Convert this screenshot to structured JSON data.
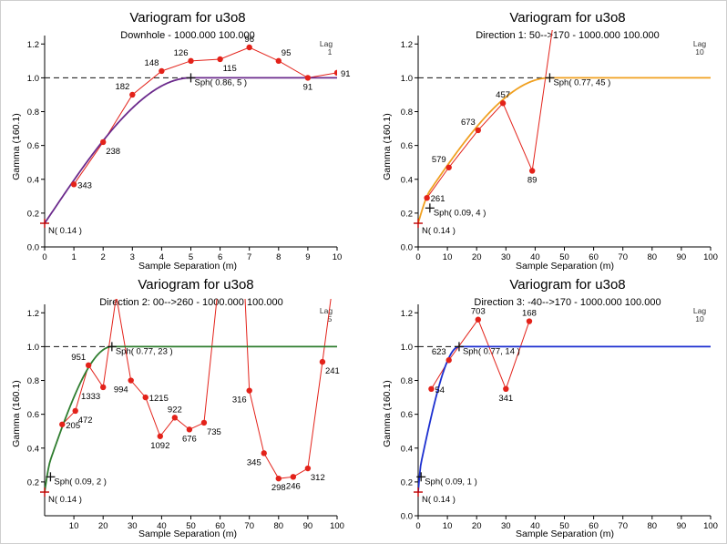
{
  "panels": [
    {
      "title": "Variogram for u3o8",
      "subtitle": "Downhole - 1000.000 100.000",
      "xlabel": "Sample Separation (m)",
      "ylabel": "Gamma (160.1)",
      "lag_title": "Lag",
      "lag_value": "1",
      "model_color": "#6b2a8c",
      "chart_data": {
        "type": "line",
        "xlim": [
          0,
          10
        ],
        "ylim": [
          0,
          1.25
        ],
        "xticks": [
          0,
          1,
          2,
          3,
          4,
          5,
          6,
          7,
          8,
          9,
          10
        ],
        "yticks": [
          0.0,
          0.2,
          0.4,
          0.6,
          0.8,
          1.0,
          1.2
        ],
        "sill": 1.0,
        "experimental": {
          "x": [
            1,
            2,
            3,
            4,
            5,
            6,
            7,
            8,
            9,
            10
          ],
          "y": [
            0.37,
            0.62,
            0.9,
            1.04,
            1.1,
            1.11,
            1.18,
            1.1,
            1.0,
            1.03
          ],
          "labels": [
            "343",
            "238",
            "182",
            "148",
            "126",
            "115",
            "96",
            "95",
            "91",
            "91"
          ]
        },
        "label_placement": [
          "right",
          "below-right",
          "above-left",
          "above-left",
          "above-left",
          "below-right",
          "above",
          "above-right",
          "below",
          "right"
        ],
        "model": {
          "nugget": 0.14,
          "sill": 1.0,
          "range": 5
        },
        "nugget_label": "N( 0.14 )",
        "structures": [
          {
            "label": "Sph( 0.86, 5 )",
            "x": 5,
            "y": 1.0
          }
        ]
      }
    },
    {
      "title": "Variogram for u3o8",
      "subtitle": "Direction 1: 50-->170 - 1000.000 100.000",
      "xlabel": "Sample Separation (m)",
      "ylabel": "Gamma (160.1)",
      "lag_title": "Lag",
      "lag_value": "10",
      "model_color": "#f0a020",
      "chart_data": {
        "type": "line",
        "xlim": [
          0,
          100
        ],
        "ylim": [
          0,
          1.25
        ],
        "xticks": [
          0,
          10,
          20,
          30,
          40,
          50,
          60,
          70,
          80,
          90,
          100
        ],
        "yticks": [
          0.0,
          0.2,
          0.4,
          0.6,
          0.8,
          1.0,
          1.2
        ],
        "sill": 1.0,
        "experimental": {
          "x": [
            3,
            10.5,
            20.5,
            29,
            39,
            46
          ],
          "y": [
            0.29,
            0.47,
            0.69,
            0.85,
            0.45,
            1.3
          ],
          "labels": [
            "261",
            "579",
            "673",
            "457",
            "89",
            ""
          ]
        },
        "label_placement": [
          "right",
          "above-left",
          "above-left",
          "above",
          "below",
          "none"
        ],
        "model": {
          "nugget": 0.14,
          "structures": [
            {
              "sill": 0.09,
              "range": 4
            },
            {
              "sill": 0.77,
              "range": 45
            }
          ]
        },
        "nugget_label": "N( 0.14 )",
        "structures": [
          {
            "label": "Sph( 0.09, 4 )",
            "x": 4,
            "y": 0.23
          },
          {
            "label": "Sph( 0.77, 45 )",
            "x": 45,
            "y": 1.0
          }
        ]
      }
    },
    {
      "title": "Variogram for u3o8",
      "subtitle": "Direction 2: 00-->260 - 1000.000 100.000",
      "xlabel": "Sample Separation (m)",
      "ylabel": "Gamma (160.1)",
      "lag_title": "Lag",
      "lag_value": "5",
      "model_color": "#2f7d2f",
      "chart_data": {
        "type": "line",
        "xlim": [
          0,
          100
        ],
        "ylim": [
          0,
          1.25
        ],
        "xticks": [
          10,
          20,
          30,
          40,
          50,
          60,
          70,
          80,
          90,
          100
        ],
        "yticks": [
          0.2,
          0.4,
          0.6,
          0.8,
          1.0,
          1.2
        ],
        "sill": 1.0,
        "experimental": {
          "x": [
            6,
            10.5,
            15,
            20,
            24.5,
            29.5,
            34.5,
            39.5,
            44.5,
            49.5,
            54.5,
            59,
            68.5,
            70,
            75,
            80,
            85,
            90,
            95,
            98
          ],
          "y": [
            0.54,
            0.62,
            0.89,
            0.76,
            1.3,
            0.8,
            0.7,
            0.47,
            0.58,
            0.51,
            0.55,
            1.3,
            1.3,
            0.74,
            0.37,
            0.22,
            0.23,
            0.28,
            0.91,
            1.3
          ],
          "labels": [
            "205",
            "472",
            "951",
            "1333",
            "",
            "994",
            "1215",
            "1092",
            "922",
            "676",
            "735",
            "",
            "",
            "316",
            "345",
            "298",
            "246",
            "312",
            "241",
            ""
          ]
        },
        "label_placement": [
          "right",
          "below-right",
          "above-left",
          "below-left",
          "none",
          "below-left",
          "right",
          "below",
          "above",
          "below",
          "below-right",
          "none",
          "none",
          "below-left",
          "below-left",
          "below",
          "below",
          "below-right",
          "below-right",
          "none"
        ],
        "model": {
          "nugget": 0.14,
          "structures": [
            {
              "sill": 0.09,
              "range": 2
            },
            {
              "sill": 0.77,
              "range": 23
            }
          ]
        },
        "nugget_label": "N( 0.14 )",
        "structures": [
          {
            "label": "Sph( 0.09, 2 )",
            "x": 2,
            "y": 0.23
          },
          {
            "label": "Sph( 0.77, 23 )",
            "x": 23,
            "y": 1.0
          }
        ]
      }
    },
    {
      "title": "Variogram for u3o8",
      "subtitle": "Direction 3: -40-->170 - 1000.000 100.000",
      "xlabel": "Sample Separation (m)",
      "ylabel": "Gamma (160.1)",
      "lag_title": "Lag",
      "lag_value": "10",
      "model_color": "#1c2fd0",
      "chart_data": {
        "type": "line",
        "xlim": [
          0,
          100
        ],
        "ylim": [
          0,
          1.25
        ],
        "xticks": [
          0,
          10,
          20,
          30,
          40,
          50,
          60,
          70,
          80,
          90,
          100
        ],
        "yticks": [
          0.0,
          0.2,
          0.4,
          0.6,
          0.8,
          1.0,
          1.2
        ],
        "sill": 1.0,
        "experimental": {
          "x": [
            4.5,
            10.5,
            20.5,
            30,
            38
          ],
          "y": [
            0.75,
            0.92,
            1.16,
            0.75,
            1.15
          ],
          "labels": [
            "54",
            "623",
            "703",
            "341",
            "168"
          ]
        },
        "label_placement": [
          "right",
          "above-left",
          "above",
          "below",
          "above"
        ],
        "model": {
          "nugget": 0.14,
          "structures": [
            {
              "sill": 0.09,
              "range": 1
            },
            {
              "sill": 0.77,
              "range": 14
            }
          ]
        },
        "nugget_label": "N( 0.14 )",
        "structures": [
          {
            "label": "Sph( 0.09, 1 )",
            "x": 1,
            "y": 0.23
          },
          {
            "label": "Sph( 0.77, 14 )",
            "x": 14,
            "y": 1.0
          }
        ]
      }
    }
  ]
}
